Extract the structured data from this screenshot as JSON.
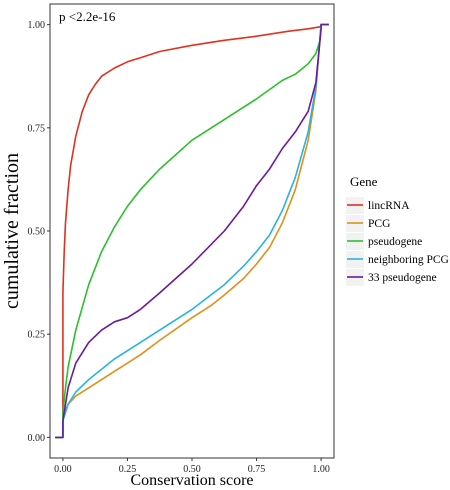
{
  "chart_data": {
    "type": "line",
    "title": "",
    "xlabel": "Conservation score",
    "ylabel": "cumulative fraction",
    "xlim": [
      -0.05,
      1.05
    ],
    "ylim": [
      -0.05,
      1.05
    ],
    "x_ticks": [
      0.0,
      0.25,
      0.5,
      0.75,
      1.0
    ],
    "x_tick_labels": [
      "0.00",
      "0.25",
      "0.50",
      "0.75",
      "1.00"
    ],
    "y_ticks": [
      0.0,
      0.25,
      0.5,
      0.75,
      1.0
    ],
    "y_tick_labels": [
      "0.00",
      "0.25",
      "0.50",
      "0.75",
      "1.00"
    ],
    "grid": false,
    "annotation": "p <2.2e-16",
    "legend": {
      "title": "Gene",
      "placement": "right"
    },
    "series": [
      {
        "name": "lincRNA",
        "color": "#e0311f",
        "x": [
          -0.03,
          0.0,
          0.0,
          0.005,
          0.01,
          0.02,
          0.03,
          0.05,
          0.075,
          0.1,
          0.125,
          0.15,
          0.2,
          0.25,
          0.3,
          0.375,
          0.5,
          0.625,
          0.75,
          0.875,
          0.95,
          1.0,
          1.0,
          1.03
        ],
        "y": [
          0.0,
          0.0,
          0.35,
          0.45,
          0.52,
          0.6,
          0.66,
          0.73,
          0.79,
          0.83,
          0.855,
          0.875,
          0.895,
          0.91,
          0.92,
          0.935,
          0.95,
          0.962,
          0.972,
          0.984,
          0.99,
          0.995,
          1.0,
          1.0
        ]
      },
      {
        "name": "PCG",
        "color": "#e38f18",
        "x": [
          -0.03,
          0.0,
          0.0,
          0.02,
          0.05,
          0.1,
          0.15,
          0.2,
          0.25,
          0.3,
          0.375,
          0.5,
          0.575,
          0.625,
          0.7,
          0.75,
          0.8,
          0.85,
          0.9,
          0.95,
          0.98,
          1.0,
          1.0,
          1.03
        ],
        "y": [
          0.0,
          0.0,
          0.05,
          0.08,
          0.1,
          0.12,
          0.14,
          0.16,
          0.18,
          0.2,
          0.235,
          0.29,
          0.32,
          0.345,
          0.385,
          0.42,
          0.46,
          0.52,
          0.6,
          0.72,
          0.84,
          1.0,
          1.0,
          1.0
        ]
      },
      {
        "name": "pseudogene",
        "color": "#2cc12a",
        "x": [
          -0.03,
          0.0,
          0.0,
          0.01,
          0.02,
          0.05,
          0.1,
          0.15,
          0.2,
          0.25,
          0.3,
          0.375,
          0.5,
          0.625,
          0.75,
          0.85,
          0.9,
          0.95,
          0.98,
          0.995,
          1.0,
          1.03
        ],
        "y": [
          0.0,
          0.0,
          0.06,
          0.12,
          0.17,
          0.26,
          0.37,
          0.45,
          0.51,
          0.56,
          0.6,
          0.65,
          0.72,
          0.77,
          0.82,
          0.865,
          0.88,
          0.905,
          0.93,
          0.96,
          1.0,
          1.0
        ]
      },
      {
        "name": "neighboring PCG",
        "color": "#27b4e0",
        "x": [
          -0.03,
          0.0,
          0.0,
          0.02,
          0.05,
          0.1,
          0.15,
          0.2,
          0.25,
          0.3,
          0.375,
          0.5,
          0.625,
          0.7,
          0.75,
          0.8,
          0.85,
          0.9,
          0.95,
          0.98,
          1.0,
          1.0,
          1.03
        ],
        "y": [
          0.0,
          0.0,
          0.04,
          0.08,
          0.11,
          0.14,
          0.165,
          0.19,
          0.21,
          0.23,
          0.26,
          0.31,
          0.37,
          0.415,
          0.45,
          0.49,
          0.55,
          0.63,
          0.74,
          0.85,
          1.0,
          1.0,
          1.0
        ]
      },
      {
        "name": "33 pseudogene",
        "color": "#6a1a9e",
        "x": [
          -0.03,
          0.0,
          0.0,
          0.02,
          0.05,
          0.1,
          0.15,
          0.2,
          0.25,
          0.3,
          0.375,
          0.5,
          0.625,
          0.7,
          0.75,
          0.8,
          0.85,
          0.9,
          0.95,
          0.98,
          1.0,
          1.0,
          1.03
        ],
        "y": [
          0.0,
          0.0,
          0.04,
          0.12,
          0.18,
          0.23,
          0.26,
          0.28,
          0.29,
          0.31,
          0.35,
          0.42,
          0.5,
          0.56,
          0.61,
          0.65,
          0.7,
          0.74,
          0.79,
          0.86,
          0.99,
          1.0,
          1.0
        ]
      }
    ]
  }
}
